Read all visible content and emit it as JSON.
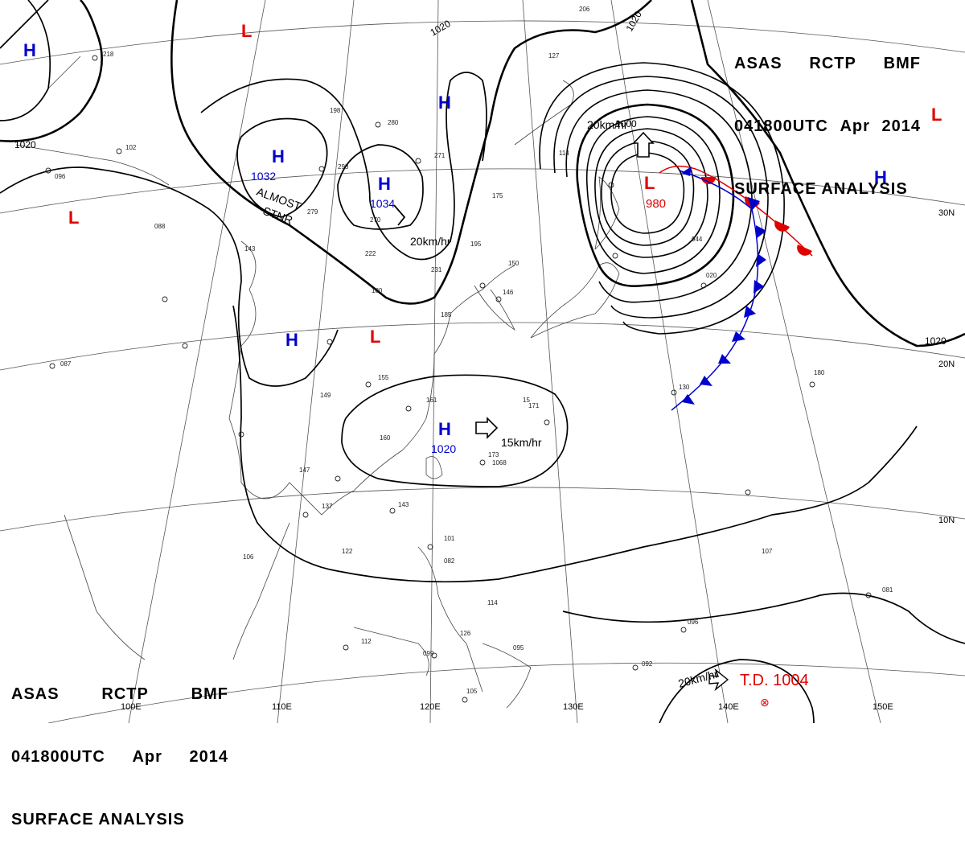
{
  "header": {
    "line1": [
      "ASAS",
      "RCTP",
      "BMF"
    ],
    "line2": [
      "041800UTC",
      "Apr",
      "2014"
    ],
    "line3": "SURFACE ANALYSIS"
  },
  "colors": {
    "high": "#0000cc",
    "low": "#e00000",
    "isobar": "#000000",
    "warm_front": "#e00000",
    "cold_front": "#0000cc",
    "grid": "#555555"
  },
  "pressure_centers": [
    {
      "type": "H",
      "value": "1032"
    },
    {
      "type": "H",
      "value": "1034"
    },
    {
      "type": "H",
      "value": "1020"
    },
    {
      "type": "L",
      "value": "980"
    },
    {
      "type": "H",
      "value": ""
    },
    {
      "type": "L",
      "value": ""
    }
  ],
  "isobar_labels": [
    "1020",
    "1020",
    "1020",
    "1000",
    "1020"
  ],
  "motion_labels": [
    "20km/hr",
    "20km/hr",
    "15km/hr",
    "20km/hr"
  ],
  "annotations": {
    "almost_stationary": [
      "ALMOST",
      "STNR"
    ]
  },
  "tropical_depression": "T.D. 1004",
  "latitude_labels": [
    "30N",
    "20N",
    "10N"
  ],
  "longitude_labels": [
    "100E",
    "110E",
    "120E",
    "130E",
    "140E",
    "150E"
  ],
  "station_values": [
    "218",
    "102",
    "096",
    "088",
    "143",
    "198",
    "298",
    "280",
    "271",
    "279",
    "270",
    "222",
    "231",
    "175",
    "195",
    "150",
    "146",
    "180",
    "185",
    "155",
    "149",
    "161",
    "160",
    "173",
    "137",
    "147",
    "143",
    "122",
    "106",
    "114",
    "112",
    "099",
    "105",
    "101",
    "082",
    "095",
    "114",
    "126",
    "092",
    "096",
    "081",
    "107",
    "130",
    "180",
    "944",
    "020",
    "087",
    "127",
    "206",
    "171",
    "15",
    "1068"
  ]
}
